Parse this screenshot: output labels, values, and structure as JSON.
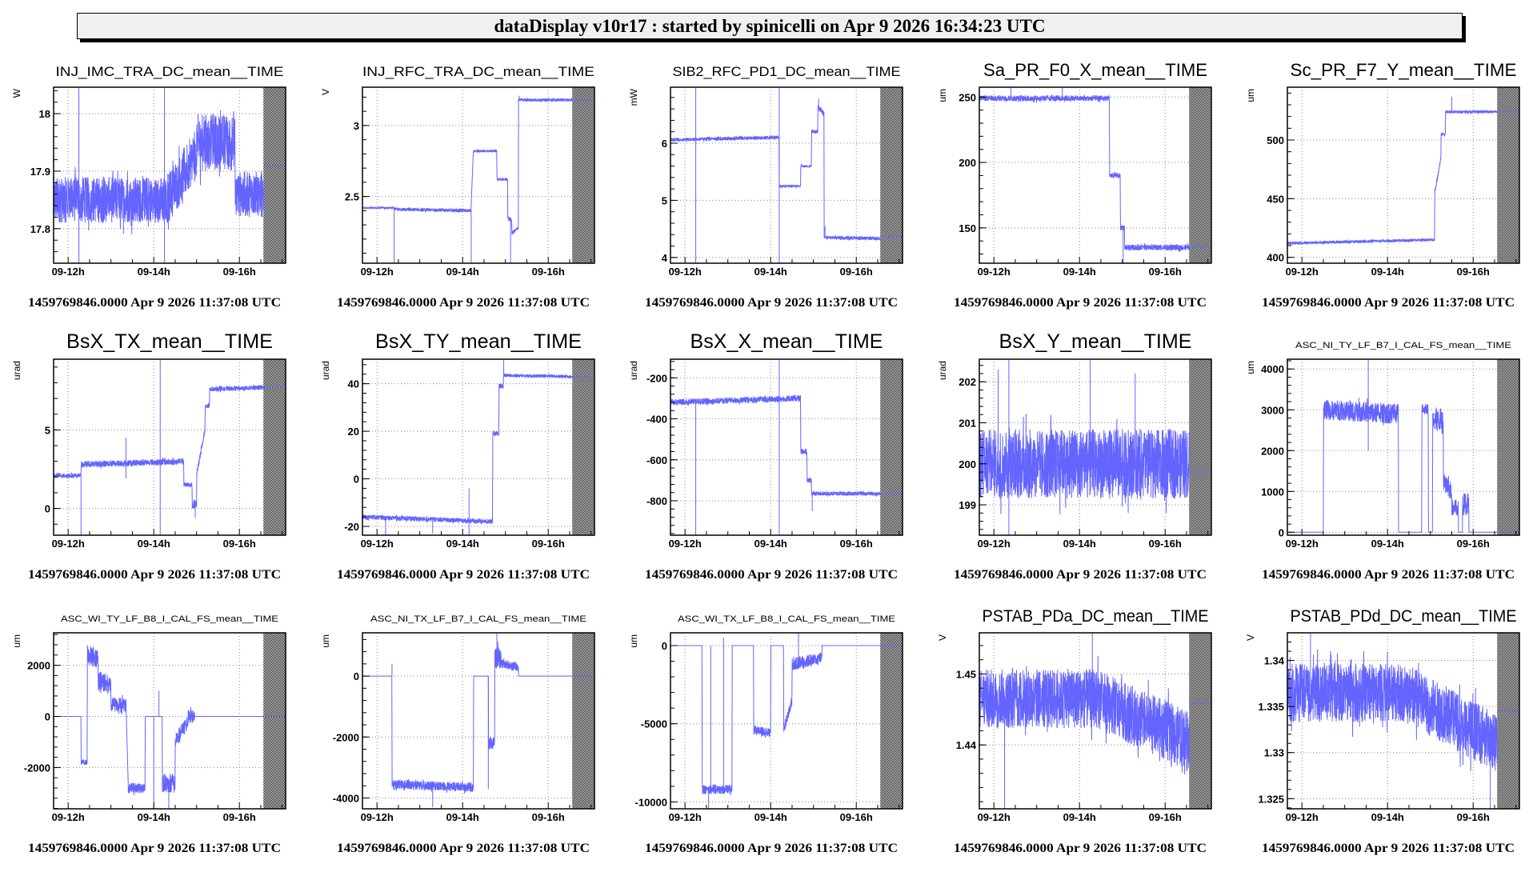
{
  "header": {
    "title": "dataDisplay v10r17 : started by spinicelli on Apr  9 2026 16:34:23 UTC"
  },
  "colors": {
    "trace": "#6464ff",
    "frame": "#000000",
    "grid": "#888888",
    "header_bg": "#f0f0f0"
  },
  "chart_data": [
    {
      "type": "line",
      "title": "INJ_IMC_TRA_DC_mean__TIME",
      "ylabel": "W",
      "ylim": [
        17.74,
        18.046
      ],
      "yticks": [
        17.8,
        17.9,
        18
      ],
      "ytick_labels": [
        "17.8",
        "17.9",
        "18"
      ],
      "segments": [
        [
          11.66,
          14.3,
          17.85,
          17.85,
          0.04
        ],
        [
          14.3,
          15.0,
          17.85,
          17.93,
          0.045
        ],
        [
          15.0,
          15.9,
          17.95,
          17.95,
          0.05
        ],
        [
          15.9,
          16.56,
          17.86,
          17.86,
          0.04
        ]
      ],
      "spikes": [
        [
          12.25,
          18.046
        ],
        [
          12.25,
          17.74
        ],
        [
          14.25,
          18.046
        ],
        [
          14.25,
          17.74
        ]
      ],
      "hold": 17.91,
      "footer": "1459769846.0000 Apr 9 2026 11:37:08 UTC"
    },
    {
      "type": "line",
      "title": "INJ_RFC_TRA_DC_mean__TIME",
      "ylabel": "V",
      "ylim": [
        2.03,
        3.27
      ],
      "yticks": [
        2.5,
        3
      ],
      "ytick_labels": [
        "2.5",
        "3"
      ],
      "segments": [
        [
          11.66,
          12.4,
          2.42,
          2.42,
          0.006
        ],
        [
          12.4,
          14.2,
          2.41,
          2.4,
          0.012
        ],
        [
          14.25,
          14.8,
          2.82,
          2.82,
          0.008
        ],
        [
          14.8,
          15.05,
          2.62,
          2.62,
          0.008
        ],
        [
          15.05,
          15.15,
          2.35,
          2.33,
          0.015
        ],
        [
          15.15,
          15.3,
          2.24,
          2.28,
          0.012
        ],
        [
          15.3,
          16.56,
          3.18,
          3.18,
          0.01
        ]
      ],
      "spikes": [
        [
          12.4,
          2.03
        ],
        [
          14.2,
          2.03
        ],
        [
          15.12,
          2.03
        ],
        [
          15.32,
          3.21
        ]
      ],
      "hold": 3.18,
      "footer": "1459769846.0000 Apr 9 2026 11:37:08 UTC"
    },
    {
      "type": "line",
      "title": "SIB2_RFC_PD1_DC_mean__TIME",
      "ylabel": "mW",
      "ylim": [
        3.9,
        6.98
      ],
      "yticks": [
        4,
        5,
        6
      ],
      "ytick_labels": [
        "4",
        "5",
        "6"
      ],
      "segments": [
        [
          11.66,
          14.2,
          6.06,
          6.1,
          0.03
        ],
        [
          14.2,
          14.7,
          5.25,
          5.25,
          0.02
        ],
        [
          14.7,
          14.95,
          5.6,
          5.6,
          0.02
        ],
        [
          14.95,
          15.1,
          6.2,
          6.2,
          0.03
        ],
        [
          15.1,
          15.25,
          6.65,
          6.5,
          0.05
        ],
        [
          15.25,
          16.56,
          4.35,
          4.33,
          0.03
        ]
      ],
      "spikes": [
        [
          12.25,
          6.98
        ],
        [
          12.25,
          3.9
        ],
        [
          14.2,
          6.98
        ],
        [
          14.2,
          3.9
        ],
        [
          15.12,
          6.78
        ],
        [
          15.27,
          4.55
        ]
      ],
      "hold": 4.37,
      "footer": "1459769846.0000 Apr 9 2026 11:37:08 UTC"
    },
    {
      "type": "line",
      "title": "Sa_PR_F0_X_mean__TIME",
      "ylabel": "um",
      "ylim": [
        123,
        257.5
      ],
      "yticks": [
        150,
        200,
        250
      ],
      "ytick_labels": [
        "150",
        "200",
        "250"
      ],
      "segments": [
        [
          11.66,
          14.7,
          249,
          249,
          2.2
        ],
        [
          14.7,
          14.95,
          190,
          190,
          2
        ],
        [
          14.95,
          15.05,
          150,
          150,
          2
        ],
        [
          15.05,
          16.56,
          135,
          135,
          2.2
        ]
      ],
      "spikes": [
        [
          12.4,
          257.5
        ],
        [
          15.02,
          123
        ],
        [
          13.6,
          257.5
        ]
      ],
      "hold": 135,
      "footer": "1459769846.0000 Apr 9 2026 11:37:08 UTC"
    },
    {
      "type": "line",
      "title": "Sc_PR_F7_Y_mean__TIME",
      "ylabel": "um",
      "ylim": [
        395,
        545
      ],
      "yticks": [
        400,
        450,
        500
      ],
      "ytick_labels": [
        "400",
        "450",
        "500"
      ],
      "segments": [
        [
          11.66,
          15.1,
          412,
          415,
          1.2
        ],
        [
          15.1,
          15.25,
          455,
          485,
          2
        ],
        [
          15.25,
          15.35,
          505,
          505,
          1.5
        ],
        [
          15.35,
          16.56,
          524,
          524,
          1.2
        ]
      ],
      "spikes": [
        [
          15.5,
          537
        ]
      ],
      "hold": 524,
      "footer": "1459769846.0000 Apr 9 2026 11:37:08 UTC"
    },
    {
      "type": "line",
      "title": "BsX_TX_mean__TIME",
      "ylabel": "urad",
      "ylim": [
        -1.7,
        9.5
      ],
      "yticks": [
        0,
        5
      ],
      "ytick_labels": [
        "0",
        "5"
      ],
      "segments": [
        [
          11.66,
          12.3,
          2.1,
          2.1,
          0.15
        ],
        [
          12.3,
          14.7,
          2.8,
          3.0,
          0.2
        ],
        [
          14.7,
          14.9,
          1.5,
          1.5,
          0.15
        ],
        [
          14.9,
          15.0,
          0.3,
          0.3,
          0.3
        ],
        [
          15.0,
          15.2,
          2.2,
          5.0,
          0.2
        ],
        [
          15.2,
          15.3,
          6.5,
          6.5,
          0.15
        ],
        [
          15.3,
          16.56,
          7.6,
          7.7,
          0.15
        ]
      ],
      "spikes": [
        [
          12.3,
          -1.7
        ],
        [
          13.35,
          4.5
        ],
        [
          13.35,
          1.9
        ],
        [
          14.15,
          9.5
        ],
        [
          14.15,
          -1.7
        ],
        [
          14.97,
          -0.6
        ]
      ],
      "hold": 7.7,
      "footer": "1459769846.0000 Apr 9 2026 11:37:08 UTC"
    },
    {
      "type": "line",
      "title": "BsX_TY_mean__TIME",
      "ylabel": "urad",
      "ylim": [
        -23.7,
        50.3
      ],
      "yticks": [
        -20,
        0,
        20,
        40
      ],
      "ytick_labels": [
        "-20",
        "0",
        "20",
        "40"
      ],
      "segments": [
        [
          11.66,
          14.7,
          -16,
          -18,
          1
        ],
        [
          14.7,
          14.85,
          19,
          19,
          1
        ],
        [
          14.85,
          14.95,
          39,
          39,
          1
        ],
        [
          14.95,
          16.56,
          43.5,
          43,
          0.7
        ]
      ],
      "spikes": [
        [
          12.2,
          -23.7
        ],
        [
          14.15,
          -4
        ],
        [
          14.15,
          -23.7
        ],
        [
          14.96,
          50.3
        ],
        [
          13.3,
          -23
        ]
      ],
      "hold": 43,
      "footer": "1459769846.0000 Apr 9 2026 11:37:08 UTC"
    },
    {
      "type": "line",
      "title": "BsX_X_mean__TIME",
      "ylabel": "urad",
      "ylim": [
        -968,
        -109
      ],
      "yticks": [
        -800,
        -600,
        -400,
        -200
      ],
      "ytick_labels": [
        "-800",
        "-600",
        "-400",
        "-200"
      ],
      "segments": [
        [
          11.66,
          14.7,
          -320,
          -300,
          15
        ],
        [
          14.7,
          14.85,
          -560,
          -560,
          12
        ],
        [
          14.85,
          14.95,
          -700,
          -700,
          12
        ],
        [
          14.95,
          16.56,
          -765,
          -765,
          10
        ]
      ],
      "spikes": [
        [
          12.25,
          -968
        ],
        [
          14.2,
          -109
        ],
        [
          14.2,
          -968
        ],
        [
          14.97,
          -850
        ]
      ],
      "hold": -765,
      "footer": "1459769846.0000 Apr 9 2026 11:37:08 UTC"
    },
    {
      "type": "line",
      "title": "BsX_Y_mean__TIME",
      "ylabel": "urad",
      "ylim": [
        198.26,
        202.55
      ],
      "yticks": [
        199,
        200,
        201,
        202
      ],
      "ytick_labels": [
        "199",
        "200",
        "201",
        "202"
      ],
      "segments": [
        [
          11.66,
          16.56,
          200,
          200,
          0.85
        ]
      ],
      "spikes": [
        [
          12.35,
          202.55
        ],
        [
          14.25,
          202.55
        ],
        [
          12.35,
          198.26
        ],
        [
          12.1,
          202.3
        ],
        [
          15.3,
          202.2
        ]
      ],
      "hold": 199.8,
      "footer": "1459769846.0000 Apr 9 2026 11:37:08 UTC"
    },
    {
      "type": "line",
      "title": "ASC_NI_TY_LF_B7_I_CAL_FS_mean__TIME",
      "ylabel": "um",
      "ylim": [
        -72,
        4240
      ],
      "yticks": [
        0,
        1000,
        2000,
        3000,
        4000
      ],
      "ytick_labels": [
        "0",
        "1000",
        "2000",
        "3000",
        "4000"
      ],
      "segments": [
        [
          11.66,
          12.5,
          0,
          0,
          0
        ],
        [
          12.5,
          14.25,
          3000,
          2900,
          250
        ],
        [
          14.25,
          14.8,
          0,
          0,
          0
        ],
        [
          14.8,
          14.95,
          3000,
          3000,
          150
        ],
        [
          14.95,
          15.05,
          0,
          0,
          0
        ],
        [
          15.05,
          15.3,
          2800,
          2700,
          300
        ],
        [
          15.3,
          15.5,
          1300,
          1000,
          250
        ],
        [
          15.5,
          15.65,
          600,
          600,
          200
        ],
        [
          15.65,
          15.75,
          0,
          0,
          0
        ],
        [
          15.75,
          15.9,
          700,
          700,
          300
        ],
        [
          15.9,
          16.56,
          0,
          0,
          0
        ]
      ],
      "spikes": [
        [
          13.55,
          4240
        ],
        [
          13.55,
          2000
        ]
      ],
      "hold": 0,
      "footer": "1459769846.0000 Apr 9 2026 11:37:08 UTC"
    },
    {
      "type": "line",
      "title": "ASC_WI_TY_LF_B8_I_CAL_FS_mean__TIME",
      "ylabel": "um",
      "ylim": [
        -3615,
        3270
      ],
      "yticks": [
        -2000,
        0,
        2000
      ],
      "ytick_labels": [
        "-2000",
        "0",
        "2000"
      ],
      "segments": [
        [
          11.66,
          12.3,
          0,
          0,
          0
        ],
        [
          12.3,
          12.45,
          -1800,
          -1800,
          100
        ],
        [
          12.45,
          12.7,
          2400,
          2300,
          400
        ],
        [
          12.7,
          13.0,
          1400,
          1200,
          400
        ],
        [
          13.0,
          13.35,
          500,
          400,
          300
        ],
        [
          13.4,
          13.8,
          -2800,
          -2800,
          200
        ],
        [
          13.8,
          14.2,
          0,
          0,
          0
        ],
        [
          14.2,
          14.5,
          -2600,
          -2600,
          400
        ],
        [
          14.5,
          14.8,
          -1000,
          -200,
          300
        ],
        [
          14.8,
          14.95,
          0,
          0,
          250
        ],
        [
          14.95,
          16.56,
          0,
          0,
          0
        ]
      ],
      "spikes": [
        [
          14.0,
          -3615
        ],
        [
          14.35,
          -3615
        ],
        [
          14.12,
          1000
        ]
      ],
      "hold": 0,
      "footer": "1459769846.0000 Apr 9 2026 11:37:08 UTC"
    },
    {
      "type": "line",
      "title": "ASC_NI_TX_LF_B7_I_CAL_FS_mean__TIME",
      "ylabel": "um",
      "ylim": [
        -4355,
        1420
      ],
      "yticks": [
        -4000,
        -2000,
        0
      ],
      "ytick_labels": [
        "-4000",
        "-2000",
        "0"
      ],
      "segments": [
        [
          11.66,
          12.35,
          0,
          0,
          0
        ],
        [
          12.35,
          14.25,
          -3550,
          -3650,
          150
        ],
        [
          14.25,
          14.6,
          0,
          0,
          0
        ],
        [
          14.6,
          14.75,
          -2200,
          -2200,
          200
        ],
        [
          14.75,
          14.9,
          600,
          600,
          350
        ],
        [
          14.9,
          15.3,
          400,
          300,
          150
        ],
        [
          15.3,
          16.56,
          0,
          0,
          0
        ]
      ],
      "spikes": [
        [
          12.35,
          400
        ],
        [
          14.6,
          -3700
        ],
        [
          14.8,
          1420
        ],
        [
          13.3,
          -4300
        ]
      ],
      "hold": 0,
      "footer": "1459769846.0000 Apr 9 2026 11:37:08 UTC"
    },
    {
      "type": "line",
      "title": "ASC_WI_TX_LF_B8_I_CAL_FS_mean__TIME",
      "ylabel": "um",
      "ylim": [
        -10440,
        818
      ],
      "yticks": [
        -10000,
        -5000,
        0
      ],
      "ytick_labels": [
        "-10000",
        "-5000",
        "0"
      ],
      "segments": [
        [
          11.66,
          12.4,
          0,
          0,
          0
        ],
        [
          12.4,
          13.1,
          -9200,
          -9200,
          300
        ],
        [
          13.1,
          13.6,
          0,
          0,
          0
        ],
        [
          13.6,
          14.0,
          -5400,
          -5600,
          300
        ],
        [
          14.0,
          14.3,
          0,
          0,
          0
        ],
        [
          14.3,
          14.5,
          -5500,
          -3500,
          300
        ],
        [
          14.5,
          15.2,
          -1200,
          -800,
          400
        ],
        [
          15.2,
          16.56,
          0,
          0,
          0
        ]
      ],
      "spikes": [
        [
          12.6,
          0
        ],
        [
          12.9,
          500
        ],
        [
          12.55,
          -10440
        ],
        [
          14.65,
          800
        ]
      ],
      "hold": 0,
      "footer": "1459769846.0000 Apr 9 2026 11:37:08 UTC"
    },
    {
      "type": "line",
      "title": "PSTAB_PDa_DC_mean__TIME",
      "ylabel": "V",
      "ylim": [
        1.431,
        1.4558
      ],
      "yticks": [
        1.44,
        1.45
      ],
      "ytick_labels": [
        "1.44",
        "1.45"
      ],
      "segments": [
        [
          11.66,
          14.4,
          1.4465,
          1.4465,
          0.0042
        ],
        [
          14.4,
          16.56,
          1.4465,
          1.4405,
          0.0042
        ]
      ],
      "spikes": [
        [
          12.25,
          1.431
        ],
        [
          14.3,
          1.4558
        ]
      ],
      "hold": 1.4458,
      "footer": "1459769846.0000 Apr 9 2026 11:37:08 UTC"
    },
    {
      "type": "line",
      "title": "PSTAB_PDd_DC_mean__TIME",
      "ylabel": "V",
      "ylim": [
        1.3239,
        1.343
      ],
      "yticks": [
        1.325,
        1.33,
        1.335,
        1.34
      ],
      "ytick_labels": [
        "1.325",
        "1.33",
        "1.335",
        "1.34"
      ],
      "segments": [
        [
          11.66,
          14.4,
          1.3365,
          1.3365,
          0.0032
        ],
        [
          14.4,
          16.56,
          1.3365,
          1.331,
          0.0032
        ]
      ],
      "spikes": [
        [
          12.2,
          1.343
        ],
        [
          16.4,
          1.3239
        ]
      ],
      "hold": 1.3345,
      "footer": "1459769846.0000 Apr 9 2026 11:37:08 UTC"
    }
  ],
  "time_axis": {
    "xlim_hours": [
      11.66,
      17.08
    ],
    "no_data_from_hours": 16.56,
    "ticks_hours": [
      12,
      14,
      16
    ],
    "tick_labels": [
      "09-12h",
      "09-14h",
      "09-16h"
    ]
  }
}
